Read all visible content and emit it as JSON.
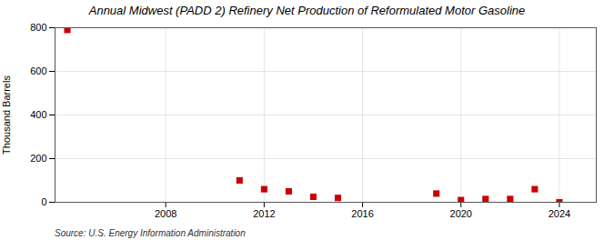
{
  "chart_data": {
    "type": "scatter",
    "title": "Annual Midwest (PADD 2) Refinery Net Production of Reformulated Motor Gasoline",
    "ylabel": "Thousand Barrels",
    "source": "Source: U.S. Energy Information Administration",
    "x": [
      2004,
      2011,
      2012,
      2013,
      2014,
      2015,
      2019,
      2020,
      2021,
      2022,
      2023,
      2024
    ],
    "values": [
      790,
      100,
      60,
      50,
      25,
      20,
      40,
      10,
      15,
      15,
      60,
      0
    ],
    "color": "#cc0000",
    "marker": "square",
    "xlim": [
      2003.5,
      2025.5
    ],
    "ylim": [
      0,
      800
    ],
    "xticks": [
      2008,
      2012,
      2016,
      2020,
      2024
    ],
    "yticks": [
      0,
      200,
      400,
      600,
      800
    ],
    "grid": true
  }
}
